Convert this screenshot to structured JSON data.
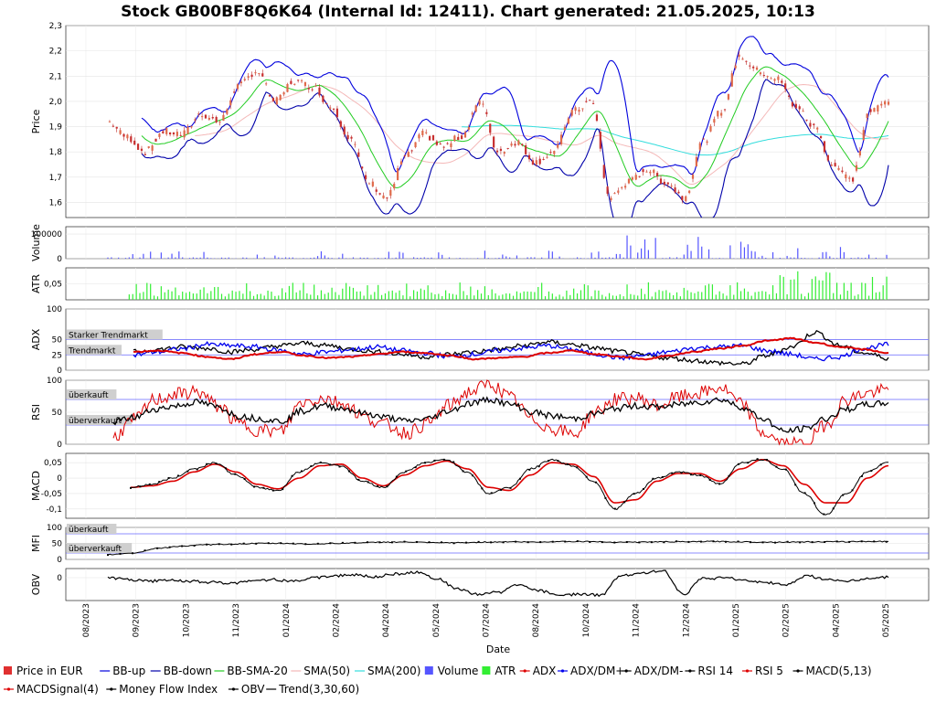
{
  "chart_data": {
    "type": "line",
    "title": "Stock GB00BF8Q6K64 (Internal Id: 12411). Chart generated: 21.05.2025, 10:13",
    "xlabel": "Date",
    "x_ticks": [
      "08/2023",
      "09/2023",
      "10/2023",
      "11/2023",
      "01/2024",
      "02/2024",
      "04/2024",
      "05/2024",
      "07/2024",
      "08/2024",
      "10/2024",
      "11/2024",
      "12/2024",
      "01/2025",
      "02/2025",
      "04/2025",
      "05/2025"
    ],
    "colors": {
      "price": "#e03030",
      "bb": "#0000dd",
      "bb_sma": "#22cc22",
      "sma50": "#f4b8b8",
      "sma200": "#33dddd",
      "volume": "#5555ff",
      "atr": "#33ee33",
      "adx": "#dd0000",
      "dm_plus": "#0000ee",
      "dm_minus": "#000000",
      "rsi14": "#000000",
      "rsi5": "#dd0000",
      "macd": "#000000",
      "macd_signal": "#dd0000",
      "mfi": "#000000",
      "obv": "#000000"
    },
    "panels": [
      {
        "id": "price",
        "ylabel": "Price",
        "ylim": [
          1.54,
          2.3
        ],
        "ticks": [
          "1,6",
          "1,7",
          "1,8",
          "1,9",
          "2,0",
          "2,1",
          "2,2",
          "2,3"
        ],
        "close": [
          1.92,
          1.86,
          1.8,
          1.88,
          1.87,
          1.95,
          1.92,
          2.06,
          2.12,
          2.0,
          2.08,
          2.06,
          1.98,
          1.86,
          1.68,
          1.62,
          1.78,
          1.87,
          1.82,
          1.86,
          2.0,
          1.8,
          1.84,
          1.76,
          1.8,
          1.96,
          2.0,
          1.62,
          1.68,
          1.73,
          1.68,
          1.62,
          1.84,
          1.96,
          2.18,
          2.12,
          2.09,
          1.98,
          1.9,
          1.75,
          1.69,
          1.96,
          2.0
        ]
      },
      {
        "id": "volume",
        "ylabel": "Volume",
        "ylim": [
          0,
          130000
        ],
        "ticks": [
          "0",
          "100000"
        ]
      },
      {
        "id": "atr",
        "ylabel": "ATR",
        "ylim": [
          0,
          0.1
        ],
        "ticks": [
          "0,05"
        ]
      },
      {
        "id": "adx",
        "ylabel": "ADX",
        "ylim": [
          0,
          100
        ],
        "ticks": [
          "0",
          "25",
          "50",
          "100"
        ],
        "zones": [
          "Starker Trendmarkt",
          "Trendmarkt"
        ],
        "adx": [
          30,
          32,
          28,
          22,
          18,
          26,
          30,
          24,
          20,
          22,
          26,
          30,
          28,
          24,
          18,
          20,
          22,
          28,
          32,
          26,
          22,
          18,
          24,
          30,
          35,
          40,
          48,
          52,
          45,
          38,
          34,
          28
        ],
        "dm_plus": [
          25,
          30,
          35,
          42,
          40,
          38,
          32,
          26,
          30,
          34,
          38,
          32,
          28,
          22,
          26,
          32,
          36,
          40,
          34,
          26,
          20,
          24,
          30,
          36,
          38,
          40,
          32,
          26,
          18,
          22,
          36,
          42
        ],
        "dm_minus": [
          30,
          34,
          38,
          36,
          30,
          34,
          40,
          44,
          40,
          34,
          30,
          26,
          22,
          26,
          30,
          34,
          40,
          46,
          42,
          36,
          30,
          24,
          20,
          16,
          12,
          10,
          24,
          38,
          62,
          40,
          28,
          20
        ]
      },
      {
        "id": "rsi",
        "ylabel": "RSI",
        "ylim": [
          0,
          100
        ],
        "ticks": [
          "0",
          "50",
          "100"
        ],
        "zones": [
          "überkauft",
          "überverkauft"
        ],
        "rsi14": [
          35,
          42,
          55,
          60,
          66,
          58,
          44,
          40,
          36,
          52,
          60,
          56,
          48,
          42,
          36,
          40,
          52,
          64,
          70,
          62,
          50,
          44,
          40,
          48,
          56,
          60,
          58,
          62,
          66,
          70,
          58,
          40,
          20,
          24,
          40,
          55,
          62,
          64
        ],
        "rsi5": [
          12,
          38,
          70,
          78,
          82,
          60,
          32,
          22,
          20,
          66,
          72,
          64,
          42,
          30,
          18,
          32,
          60,
          82,
          94,
          72,
          38,
          24,
          16,
          50,
          70,
          72,
          60,
          74,
          80,
          88,
          62,
          18,
          0,
          0,
          30,
          70,
          80,
          84
        ]
      },
      {
        "id": "macd",
        "ylabel": "MACD",
        "ylim": [
          -0.13,
          0.08
        ],
        "ticks": [
          "-0,1",
          "-0,05",
          "0",
          "0,05"
        ],
        "macd": [
          -0.03,
          -0.02,
          0.0,
          0.03,
          0.05,
          0.01,
          -0.03,
          -0.04,
          0.02,
          0.05,
          0.04,
          -0.01,
          -0.03,
          0.02,
          0.05,
          0.06,
          0.02,
          -0.05,
          -0.03,
          0.03,
          0.06,
          0.04,
          -0.01,
          -0.1,
          -0.05,
          0.0,
          0.02,
          0.01,
          -0.02,
          0.05,
          0.06,
          0.03,
          -0.05,
          -0.12,
          -0.05,
          0.02,
          0.05
        ],
        "signal": [
          -0.03,
          -0.025,
          -0.01,
          0.02,
          0.045,
          0.02,
          -0.02,
          -0.035,
          0.0,
          0.04,
          0.045,
          0.0,
          -0.025,
          0.01,
          0.04,
          0.055,
          0.03,
          -0.03,
          -0.04,
          0.01,
          0.05,
          0.045,
          0.005,
          -0.08,
          -0.07,
          -0.01,
          0.015,
          0.015,
          -0.01,
          0.03,
          0.06,
          0.04,
          -0.02,
          -0.08,
          -0.08,
          0.0,
          0.04
        ]
      },
      {
        "id": "mfi",
        "ylabel": "MFI",
        "ylim": [
          0,
          100
        ],
        "ticks": [
          "0",
          "50",
          "100"
        ],
        "zones": [
          "überkauft",
          "überverkauft"
        ],
        "mfi": [
          15,
          20,
          35,
          42,
          46,
          48,
          50,
          50,
          48,
          50,
          52,
          54,
          54,
          52,
          52,
          54,
          55,
          54,
          56,
          56,
          54,
          54,
          55,
          55,
          56,
          55,
          54,
          54,
          55,
          55,
          56,
          56
        ]
      },
      {
        "id": "obv",
        "ylabel": "OBV",
        "ticks": [
          "0"
        ]
      }
    ],
    "legend": [
      {
        "label": "Price in EUR",
        "color": "#e03030",
        "marker": "box"
      },
      {
        "label": "BB-up",
        "color": "#0000dd",
        "marker": "line"
      },
      {
        "label": "BB-down",
        "color": "#0000aa",
        "marker": "line"
      },
      {
        "label": "BB-SMA-20",
        "color": "#22cc22",
        "marker": "line"
      },
      {
        "label": "SMA(50)",
        "color": "#f4b8b8",
        "marker": "line"
      },
      {
        "label": "SMA(200)",
        "color": "#33dddd",
        "marker": "line"
      },
      {
        "label": "Volume",
        "color": "#5555ff",
        "marker": "box"
      },
      {
        "label": "ATR",
        "color": "#33ee33",
        "marker": "box"
      },
      {
        "label": "ADX",
        "color": "#dd0000",
        "marker": "dotline"
      },
      {
        "label": "ADX/DM+",
        "color": "#0000ee",
        "marker": "dotline"
      },
      {
        "label": "ADX/DM-",
        "color": "#000000",
        "marker": "dotline"
      },
      {
        "label": "RSI 14",
        "color": "#000000",
        "marker": "dotline"
      },
      {
        "label": "RSI 5",
        "color": "#dd0000",
        "marker": "dotline"
      },
      {
        "label": "MACD(5,13)",
        "color": "#000000",
        "marker": "dotline"
      },
      {
        "label": "MACDSignal(4)",
        "color": "#dd0000",
        "marker": "dotline"
      },
      {
        "label": "Money Flow Index",
        "color": "#000000",
        "marker": "dotline"
      },
      {
        "label": "OBV",
        "color": "#000000",
        "marker": "dotline"
      },
      {
        "label": "Trend(3,30,60)",
        "color": "#000000",
        "marker": "line"
      }
    ]
  }
}
